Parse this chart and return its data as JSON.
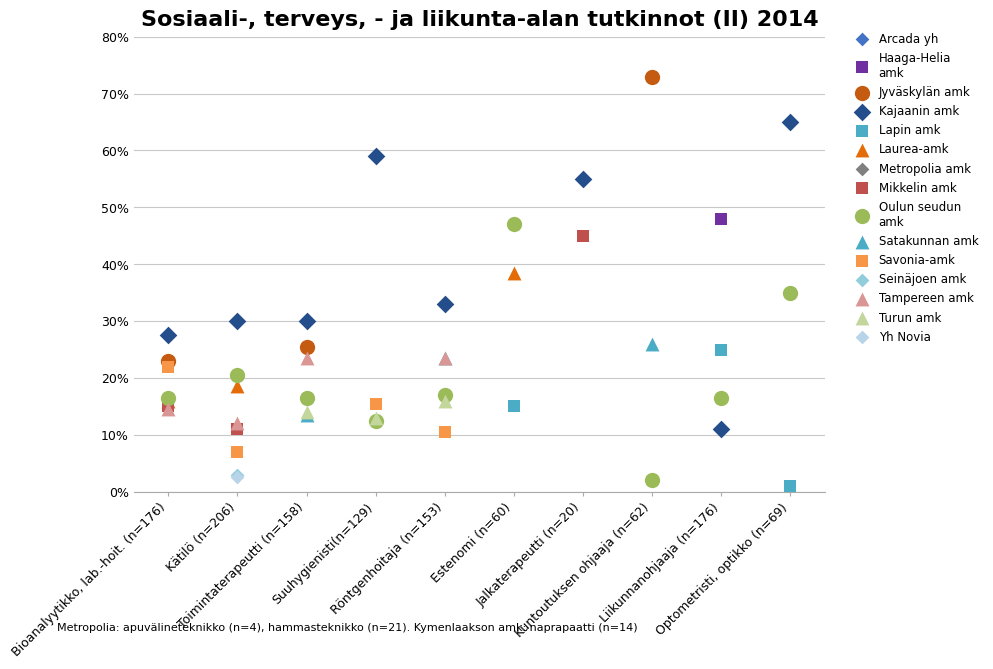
{
  "title": "Sosiaali-, terveys, - ja liikunta-alan tutkinnot (II) 2014",
  "footnote": "Metropolia: apuvälineteknikko (n=4), hammasteknikko (n=21). Kymenlaakson amk: naprapaatti (n=14)",
  "categories": [
    "Bioanalyytikko, lab.-hoit. (n=176)",
    "Kätilö (n=206)",
    "Toimintaterapeutti (n=158)",
    "Suuhygienisti(n=129)",
    "Röntgenhoitaja (n=153)",
    "Estenomi (n=60)",
    "Jalkaterapeutti (n=20)",
    "Kuntoutuksen ohjaaja (n=62)",
    "Liikunnanohjaaja (n=176)",
    "Optometristi, optikko (n=69)"
  ],
  "series": [
    {
      "name": "Arcada yh",
      "color": "#4472C4",
      "marker": "D",
      "markersize": 7,
      "values": [
        null,
        null,
        null,
        null,
        null,
        null,
        null,
        null,
        null,
        null
      ]
    },
    {
      "name": "Haaga-Helia\namk",
      "color": "#7030A0",
      "marker": "s",
      "markersize": 8,
      "values": [
        null,
        null,
        null,
        null,
        null,
        null,
        null,
        null,
        0.48,
        null
      ]
    },
    {
      "name": "Jyväskylän amk",
      "color": "#C55A11",
      "marker": "o",
      "markersize": 11,
      "values": [
        0.23,
        null,
        0.255,
        null,
        null,
        null,
        null,
        0.73,
        null,
        null
      ]
    },
    {
      "name": "Kajaanin amk",
      "color": "#244D8B",
      "marker": "D",
      "markersize": 9,
      "values": [
        0.275,
        0.3,
        0.3,
        0.59,
        0.33,
        null,
        0.55,
        null,
        0.11,
        0.65
      ]
    },
    {
      "name": "Lapin amk",
      "color": "#4BACC6",
      "marker": "s",
      "markersize": 8,
      "values": [
        null,
        null,
        null,
        null,
        null,
        0.15,
        null,
        null,
        0.25,
        0.01
      ]
    },
    {
      "name": "Laurea-amk",
      "color": "#E36C09",
      "marker": "^",
      "markersize": 10,
      "values": [
        0.16,
        0.185,
        null,
        null,
        null,
        0.385,
        null,
        null,
        null,
        null
      ]
    },
    {
      "name": "Metropolia amk",
      "color": "#808080",
      "marker": "D",
      "markersize": 7,
      "values": [
        null,
        null,
        null,
        null,
        null,
        null,
        null,
        null,
        null,
        null
      ]
    },
    {
      "name": "Mikkelin amk",
      "color": "#C0504D",
      "marker": "s",
      "markersize": 9,
      "values": [
        0.15,
        0.11,
        null,
        null,
        null,
        null,
        0.45,
        null,
        null,
        null
      ]
    },
    {
      "name": "Oulun seudun\namk",
      "color": "#9BBB59",
      "marker": "o",
      "markersize": 11,
      "values": [
        0.165,
        0.205,
        0.165,
        0.125,
        0.17,
        0.47,
        null,
        0.02,
        0.165,
        0.35
      ]
    },
    {
      "name": "Satakunnan amk",
      "color": "#4BACC6",
      "marker": "^",
      "markersize": 10,
      "values": [
        null,
        null,
        0.135,
        null,
        0.235,
        null,
        null,
        0.26,
        null,
        null
      ]
    },
    {
      "name": "Savonia-amk",
      "color": "#F79646",
      "marker": "s",
      "markersize": 9,
      "values": [
        0.22,
        0.07,
        null,
        0.155,
        0.105,
        null,
        null,
        null,
        null,
        null
      ]
    },
    {
      "name": "Seinäjoen amk",
      "color": "#92CDDC",
      "marker": "D",
      "markersize": 7,
      "values": [
        null,
        0.03,
        null,
        null,
        null,
        null,
        null,
        null,
        null,
        null
      ]
    },
    {
      "name": "Tampereen amk",
      "color": "#D99694",
      "marker": "^",
      "markersize": 10,
      "values": [
        0.145,
        0.12,
        0.235,
        null,
        0.235,
        null,
        null,
        null,
        null,
        null
      ]
    },
    {
      "name": "Turun amk",
      "color": "#C3D69B",
      "marker": "^",
      "markersize": 10,
      "values": [
        null,
        null,
        0.14,
        0.13,
        0.16,
        null,
        null,
        null,
        null,
        null
      ]
    },
    {
      "name": "Yh Novia",
      "color": "#B8D4E8",
      "marker": "D",
      "markersize": 7,
      "values": [
        null,
        0.025,
        null,
        null,
        null,
        null,
        null,
        null,
        null,
        null
      ]
    }
  ],
  "ylim": [
    0.0,
    0.8
  ],
  "yticks": [
    0.0,
    0.1,
    0.2,
    0.3,
    0.4,
    0.5,
    0.6,
    0.7,
    0.8
  ],
  "yticklabels": [
    "0%",
    "10%",
    "20%",
    "30%",
    "40%",
    "50%",
    "60%",
    "70%",
    "80%"
  ],
  "background_color": "#FFFFFF",
  "grid_color": "#C8C8C8",
  "title_fontsize": 16,
  "axis_fontsize": 9,
  "legend_fontsize": 8.5
}
